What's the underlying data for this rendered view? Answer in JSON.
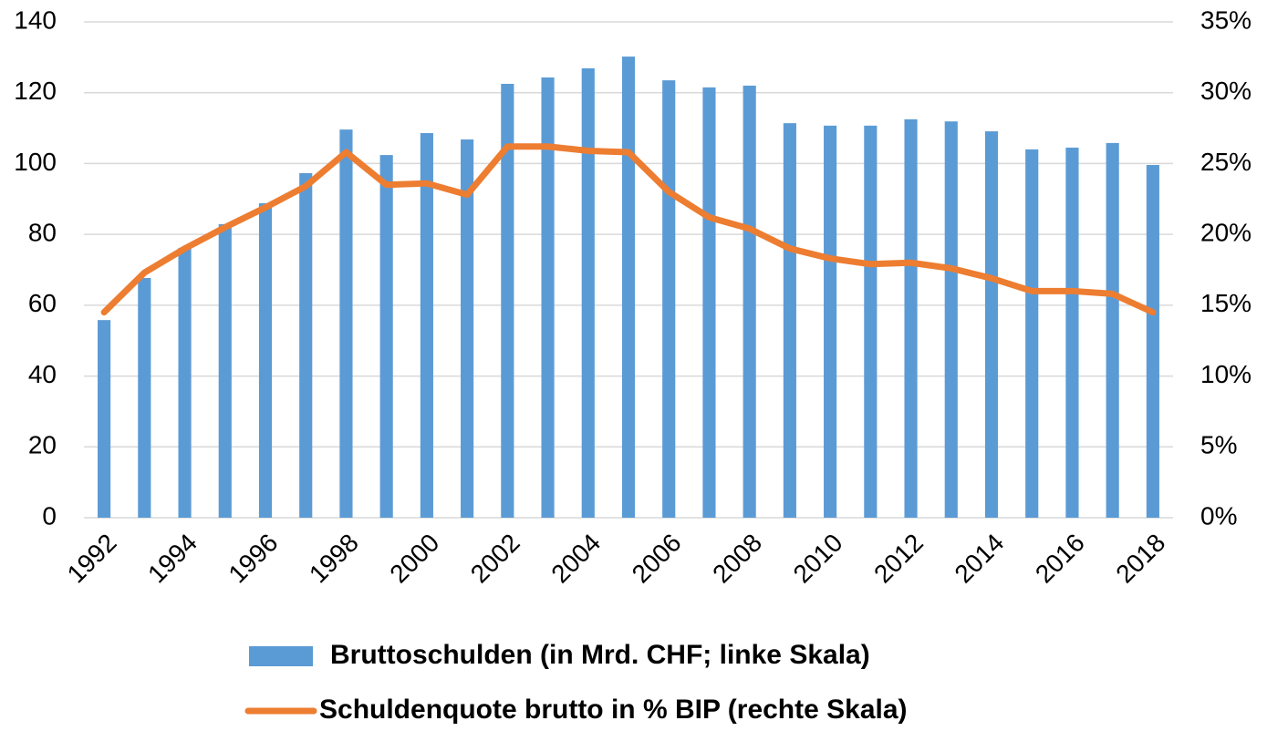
{
  "chart_data": {
    "type": "bar_line",
    "categories": [
      "1992",
      null,
      "1994",
      null,
      "1996",
      null,
      "1998",
      null,
      "2000",
      null,
      "2002",
      null,
      "2004",
      null,
      "2006",
      null,
      "2008",
      null,
      "2010",
      null,
      "2012",
      null,
      "2014",
      null,
      "2016",
      null,
      "2018"
    ],
    "series": [
      {
        "name": "Bruttoschulden (in Mrd. CHF; linke Skala)",
        "type": "bar",
        "color": "#5b9bd5",
        "values": [
          55.8,
          67.7,
          76.2,
          82.9,
          88.8,
          97.3,
          109.6,
          102.4,
          108.6,
          106.8,
          122.5,
          124.3,
          126.9,
          130.2,
          123.5,
          121.5,
          122.0,
          111.4,
          110.7,
          110.7,
          112.5,
          111.9,
          109.1,
          104.0,
          104.5,
          105.8,
          99.6
        ]
      },
      {
        "name": "Schuldenquote brutto in % BIP (rechte Skala)",
        "type": "line",
        "color": "#ed7d31",
        "axis": "y2",
        "values": [
          14.5,
          17.3,
          19.0,
          20.5,
          21.9,
          23.4,
          25.8,
          23.5,
          23.6,
          22.8,
          26.2,
          26.2,
          25.9,
          25.8,
          23.0,
          21.2,
          20.4,
          19.0,
          18.3,
          17.9,
          18.0,
          17.6,
          16.9,
          16.0,
          16.0,
          15.8,
          14.5
        ]
      }
    ],
    "ylim": [
      0,
      140
    ],
    "yticks": [
      0,
      20,
      40,
      60,
      80,
      100,
      120,
      140
    ],
    "y2lim": [
      0,
      35
    ],
    "y2ticks": [
      {
        "value": 0,
        "label": "0%"
      },
      {
        "value": 5,
        "label": "5%"
      },
      {
        "value": 10,
        "label": "10%"
      },
      {
        "value": 15,
        "label": "15%"
      },
      {
        "value": 20,
        "label": "20%"
      },
      {
        "value": 25,
        "label": "25%"
      },
      {
        "value": 30,
        "label": "30%"
      },
      {
        "value": 35,
        "label": "35%"
      }
    ],
    "grid": true,
    "legend": "bottom"
  }
}
